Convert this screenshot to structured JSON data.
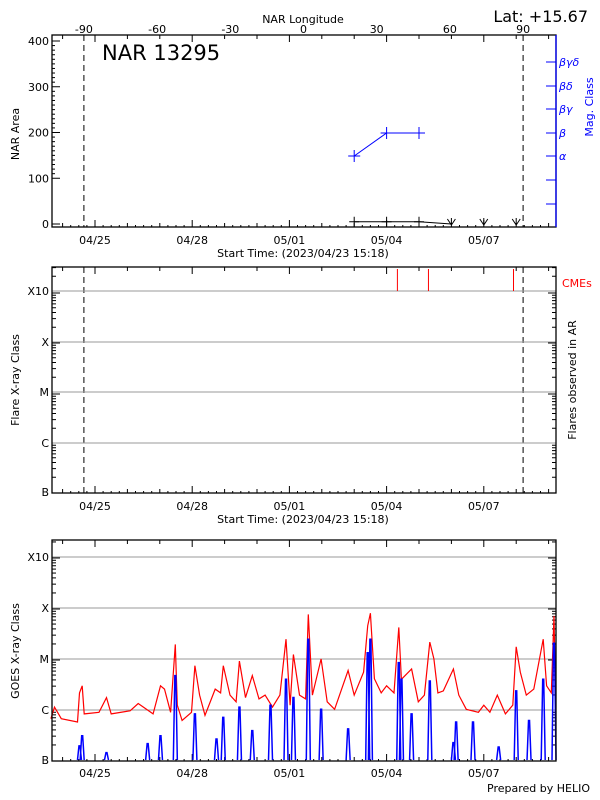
{
  "chart_data": [
    {
      "type": "line",
      "title": "NAR 13295",
      "corner_label": "Lat: +15.67",
      "top_axis": {
        "label": "NAR Longitude",
        "ticks": [
          -90,
          -60,
          -30,
          0,
          30,
          60,
          90
        ],
        "tick_labels": [
          "-90",
          "-60",
          "-30",
          "0",
          "30",
          "60",
          "90"
        ],
        "range": [
          -90,
          90
        ]
      },
      "ylabel": "NAR Area",
      "ylim": [
        0,
        400
      ],
      "yticks": [
        "0",
        "100",
        "200",
        "300",
        "400"
      ],
      "y2label": "Mag. Class",
      "y2_classes": [
        "α",
        "β",
        "βγ",
        "βδ",
        "βγδ"
      ],
      "xlabel": "Start Time: (2023/04/23 15:18)",
      "xlim": [
        "2023-04-23T15:18",
        "2023-05-09T05:30"
      ],
      "xtick_labels": [
        "04/25",
        "04/28",
        "05/01",
        "05/04",
        "05/07"
      ],
      "xticks": [
        "2023-04-25",
        "2023-04-28",
        "2023-05-01",
        "2023-05-04",
        "2023-05-07"
      ],
      "limb_markers_longitude": [
        -90,
        90
      ],
      "series": [
        {
          "role": "area",
          "color": "#000000",
          "x": [
            "2023-05-03",
            "2023-05-04",
            "2023-05-05",
            "2023-05-06",
            "2023-05-07",
            "2023-05-08"
          ],
          "values": [
            5,
            5,
            5,
            0,
            0,
            0
          ]
        },
        {
          "role": "mag_class",
          "color": "#0000ff",
          "x": [
            "2023-05-03",
            "2023-05-04",
            "2023-05-05"
          ],
          "values": [
            "α",
            "β",
            "β"
          ]
        }
      ]
    },
    {
      "type": "scatter",
      "ylabel": "Flare X-ray Class",
      "y2label": "Flares observed in AR",
      "yticks": [
        "B",
        "C",
        "M",
        "X",
        "X10"
      ],
      "xlabel": "Start Time: (2023/04/23 15:18)",
      "xtick_labels": [
        "04/25",
        "04/28",
        "05/01",
        "05/04",
        "05/07"
      ],
      "grid": true,
      "flares": [],
      "cme_label": "CMEs",
      "cme_color": "#ff0000",
      "cmes": [
        "2023-05-04T08:00",
        "2023-05-05T07:00",
        "2023-05-07T22:00"
      ]
    },
    {
      "type": "line",
      "ylabel": "GOES X-ray Class",
      "yticks": [
        "B",
        "C",
        "M",
        "X",
        "X10"
      ],
      "ylim_flux": [
        1e-07,
        0.001
      ],
      "yscale": "log",
      "grid": true,
      "xtick_labels": [
        "04/25",
        "04/28",
        "05/01",
        "05/04",
        "05/07"
      ],
      "footer": "Prepared by HELIO",
      "series": [
        {
          "color": "#ff0000",
          "points": [
            [
              "2023-04-23T15:18",
              6.5e-07
            ],
            [
              "2023-04-23T18:00",
              1.1e-06
            ],
            [
              "2023-04-23T23:00",
              6.5e-07
            ],
            [
              "2023-04-24T11:00",
              5.6e-07
            ],
            [
              "2023-04-24T12:30",
              2.1e-06
            ],
            [
              "2023-04-24T14:30",
              2.9e-06
            ],
            [
              "2023-04-24T16:00",
              8.1e-07
            ],
            [
              "2023-04-25T03:00",
              8.7e-07
            ],
            [
              "2023-04-25T08:30",
              1.7e-06
            ],
            [
              "2023-04-25T12:00",
              8.1e-07
            ],
            [
              "2023-04-26T02:00",
              9.3e-07
            ],
            [
              "2023-04-26T08:00",
              1.3e-06
            ],
            [
              "2023-04-26T19:00",
              8.1e-07
            ],
            [
              "2023-04-27T00:30",
              2.9e-06
            ],
            [
              "2023-04-27T03:30",
              2.5e-06
            ],
            [
              "2023-04-27T08:00",
              8.7e-07
            ],
            [
              "2023-04-27T11:30",
              1.9e-05
            ],
            [
              "2023-04-27T13:00",
              1.2e-06
            ],
            [
              "2023-04-27T16:30",
              6e-07
            ],
            [
              "2023-04-27T23:30",
              8.7e-07
            ],
            [
              "2023-04-28T02:00",
              7.2e-06
            ],
            [
              "2023-04-28T05:30",
              1.9e-06
            ],
            [
              "2023-04-28T09:30",
              7.6e-07
            ],
            [
              "2023-04-28T17:00",
              2.5e-06
            ],
            [
              "2023-04-28T21:00",
              2.1e-06
            ],
            [
              "2023-04-28T23:00",
              7.2e-06
            ],
            [
              "2023-04-29T04:00",
              1.9e-06
            ],
            [
              "2023-04-29T08:30",
              1.4e-06
            ],
            [
              "2023-04-29T11:00",
              8.9e-06
            ],
            [
              "2023-04-29T15:30",
              1.7e-06
            ],
            [
              "2023-04-29T20:30",
              4.6e-06
            ],
            [
              "2023-04-30T01:30",
              1.6e-06
            ],
            [
              "2023-04-30T06:00",
              1.9e-06
            ],
            [
              "2023-04-30T11:30",
              1.1e-06
            ],
            [
              "2023-04-30T17:00",
              1.9e-06
            ],
            [
              "2023-04-30T21:30",
              2.4e-05
            ],
            [
              "2023-05-01T00:30",
              1.2e-06
            ],
            [
              "2023-05-01T03:00",
              1.2e-05
            ],
            [
              "2023-05-01T07:30",
              1.9e-06
            ],
            [
              "2023-05-01T12:00",
              1.6e-06
            ],
            [
              "2023-05-01T14:00",
              7.4e-05
            ],
            [
              "2023-05-01T17:00",
              1.9e-06
            ],
            [
              "2023-05-01T23:30",
              9.8e-06
            ],
            [
              "2023-05-02T04:00",
              1.4e-06
            ],
            [
              "2023-05-02T09:30",
              1e-06
            ],
            [
              "2023-05-02T19:30",
              5.8e-06
            ],
            [
              "2023-05-03T00:00",
              1.9e-06
            ],
            [
              "2023-05-03T07:00",
              5.4e-06
            ],
            [
              "2023-05-03T10:00",
              4.4e-05
            ],
            [
              "2023-05-03T12:00",
              7.8e-05
            ],
            [
              "2023-05-03T15:00",
              4e-06
            ],
            [
              "2023-05-03T20:00",
              2.1e-06
            ],
            [
              "2023-05-04T00:00",
              2.9e-06
            ],
            [
              "2023-05-04T05:30",
              2.1e-06
            ],
            [
              "2023-05-04T09:00",
              4.1e-05
            ],
            [
              "2023-05-04T11:00",
              3.9e-06
            ],
            [
              "2023-05-04T18:30",
              6.2e-06
            ],
            [
              "2023-05-04T23:30",
              1.4e-06
            ],
            [
              "2023-05-05T04:00",
              1.9e-06
            ],
            [
              "2023-05-05T08:00",
              2.1e-05
            ],
            [
              "2023-05-05T11:00",
              9.8e-06
            ],
            [
              "2023-05-05T14:00",
              2.1e-06
            ],
            [
              "2023-05-05T18:00",
              2.3e-06
            ],
            [
              "2023-05-06T01:30",
              6.2e-06
            ],
            [
              "2023-05-06T05:30",
              1.9e-06
            ],
            [
              "2023-05-06T11:00",
              1e-06
            ],
            [
              "2023-05-06T20:00",
              8.7e-07
            ],
            [
              "2023-05-07T00:00",
              1.2e-06
            ],
            [
              "2023-05-07T04:30",
              8.7e-07
            ],
            [
              "2023-05-07T10:00",
              1.9e-06
            ],
            [
              "2023-05-07T16:00",
              8.1e-07
            ],
            [
              "2023-05-07T21:30",
              1.2e-06
            ],
            [
              "2023-05-08T00:00",
              1.7e-05
            ],
            [
              "2023-05-08T03:00",
              5.4e-06
            ],
            [
              "2023-05-08T07:30",
              1.9e-06
            ],
            [
              "2023-05-08T13:00",
              2.5e-06
            ],
            [
              "2023-05-08T20:00",
              2.4e-05
            ],
            [
              "2023-05-08T22:30",
              2.9e-06
            ],
            [
              "2023-05-09T02:00",
              2.1e-06
            ],
            [
              "2023-05-09T04:00",
              6.9e-05
            ],
            [
              "2023-05-09T05:00",
              1.9e-06
            ]
          ]
        },
        {
          "color": "#0000ff",
          "points": [
            [
              "2023-04-24T12:30",
              1.9e-07
            ],
            [
              "2023-04-24T14:30",
              3e-07
            ],
            [
              "2023-04-25T08:30",
              1.4e-07
            ],
            [
              "2023-04-26T15:00",
              2.1e-07
            ],
            [
              "2023-04-27T00:30",
              3e-07
            ],
            [
              "2023-04-27T11:30",
              4.6e-06
            ],
            [
              "2023-04-28T02:00",
              8.1e-07
            ],
            [
              "2023-04-28T18:00",
              2.6e-07
            ],
            [
              "2023-04-28T23:00",
              6.9e-07
            ],
            [
              "2023-04-29T11:00",
              1.1e-06
            ],
            [
              "2023-04-29T20:30",
              3.8e-07
            ],
            [
              "2023-04-30T10:00",
              1.2e-06
            ],
            [
              "2023-04-30T21:30",
              3.9e-06
            ],
            [
              "2023-05-01T03:00",
              1.7e-06
            ],
            [
              "2023-05-01T14:00",
              2.4e-05
            ],
            [
              "2023-05-01T23:30",
              1e-06
            ],
            [
              "2023-05-02T19:30",
              4.1e-07
            ],
            [
              "2023-05-03T10:00",
              1.3e-05
            ],
            [
              "2023-05-03T12:00",
              2.4e-05
            ],
            [
              "2023-05-04T09:00",
              8.3e-06
            ],
            [
              "2023-05-04T11:00",
              3.9e-06
            ],
            [
              "2023-05-04T18:30",
              8.1e-07
            ],
            [
              "2023-05-05T08:00",
              3.6e-06
            ],
            [
              "2023-05-06T01:30",
              2.2e-07
            ],
            [
              "2023-05-06T03:30",
              5.6e-07
            ],
            [
              "2023-05-06T16:00",
              5.6e-07
            ],
            [
              "2023-05-07T11:00",
              1.8e-07
            ],
            [
              "2023-05-08T00:00",
              2.3e-06
            ],
            [
              "2023-05-08T09:30",
              6e-07
            ],
            [
              "2023-05-08T20:00",
              3.9e-06
            ],
            [
              "2023-05-09T04:00",
              2e-05
            ]
          ]
        }
      ]
    }
  ]
}
